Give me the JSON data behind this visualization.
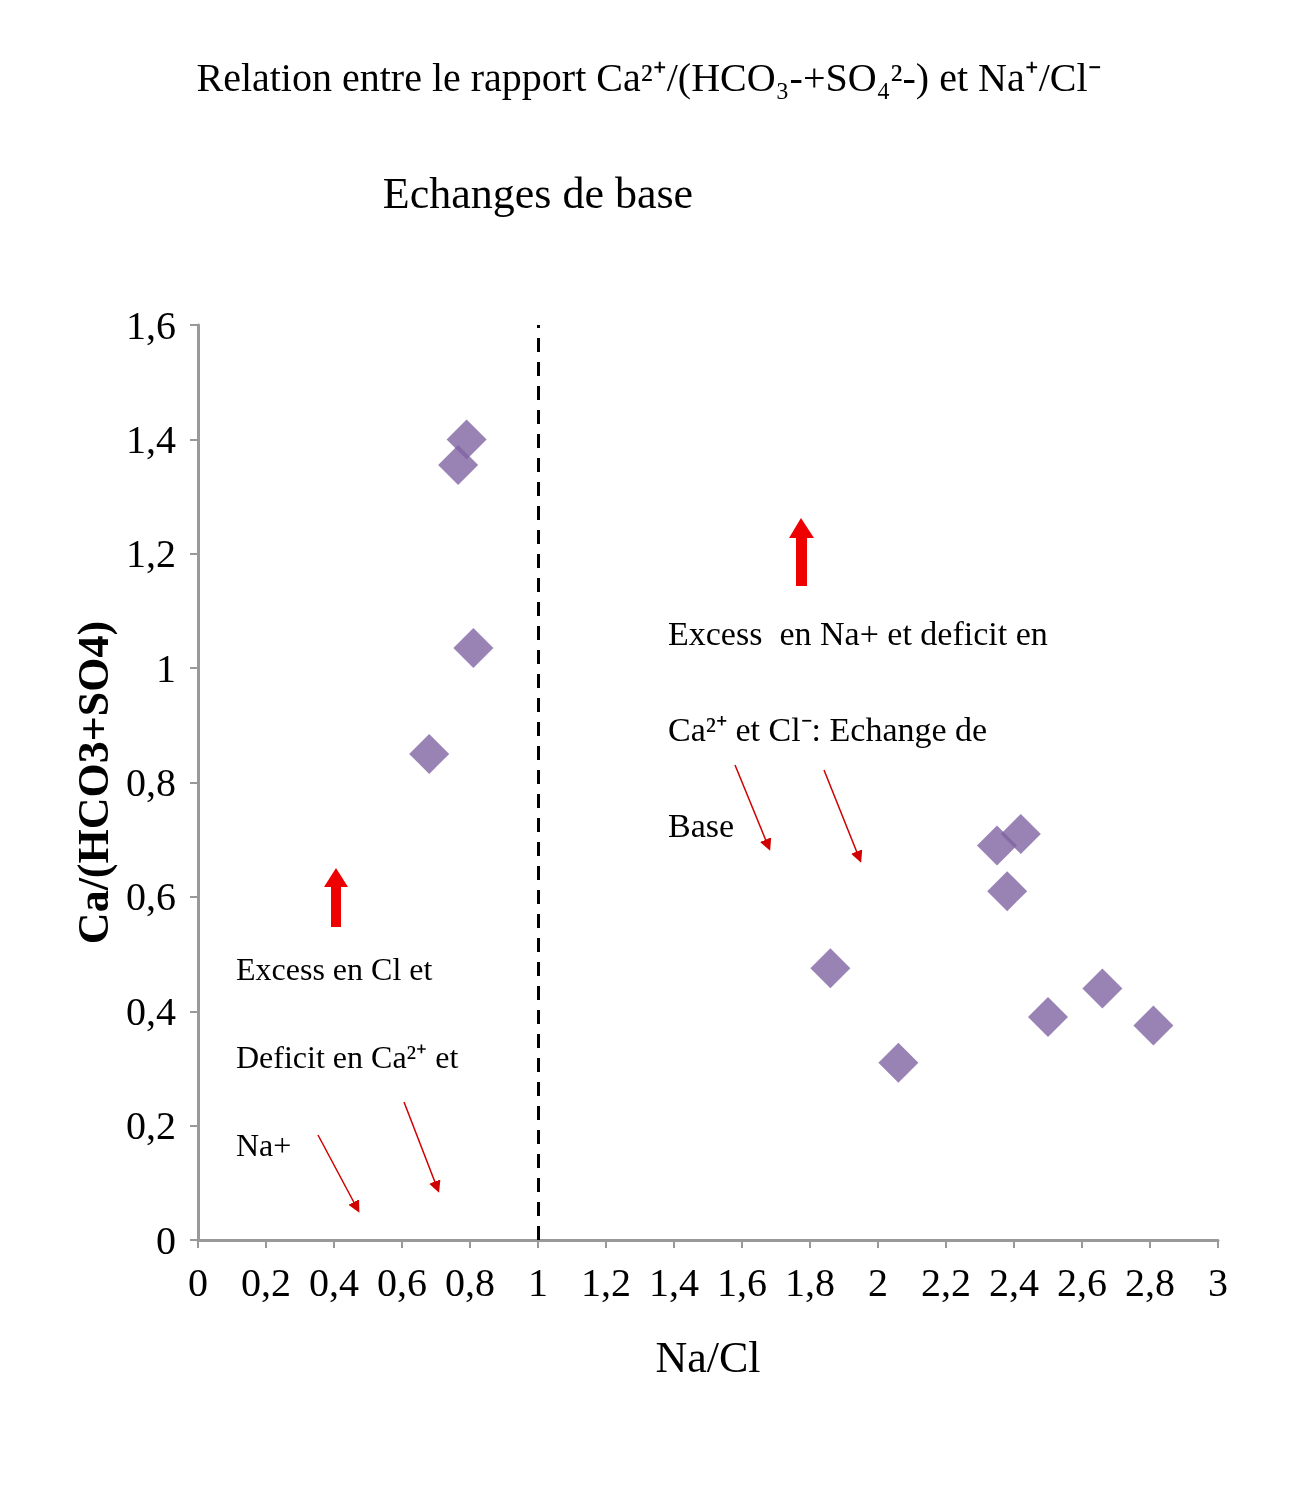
{
  "chart_data": {
    "type": "scatter",
    "title": "Relation entre le rapport Ca²⁺/(HCO₃-+SO₄²-) et Na⁺/Cl⁻",
    "xlabel": "Na/Cl",
    "ylabel": "Ca/(HCO3+SO4)",
    "x": [
      0.765,
      0.79,
      0.81,
      0.68,
      1.86,
      2.06,
      2.35,
      2.42,
      2.38,
      2.5,
      2.66,
      2.81
    ],
    "series": [
      {
        "color": "#8064a2",
        "values": [
          1.355,
          1.4,
          1.035,
          0.85,
          0.475,
          0.31,
          0.69,
          0.71,
          0.61,
          0.39,
          0.44,
          0.375
        ]
      }
    ],
    "marker": "diamond",
    "grid": false,
    "xlim": [
      0,
      3
    ],
    "xticks": [
      0,
      {
        "value": 0.2,
        "label": "0,2"
      },
      {
        "value": 0.4,
        "label": "0,4"
      },
      {
        "value": 0.6,
        "label": "0,6"
      },
      {
        "value": 0.8,
        "label": "0,8"
      },
      1,
      {
        "value": 1.2,
        "label": "1,2"
      },
      {
        "value": 1.4,
        "label": "1,4"
      },
      {
        "value": 1.6,
        "label": "1,6"
      },
      {
        "value": 1.8,
        "label": "1,8"
      },
      2,
      {
        "value": 2.2,
        "label": "2,2"
      },
      {
        "value": 2.4,
        "label": "2,4"
      },
      {
        "value": 2.6,
        "label": "2,6"
      },
      {
        "value": 2.8,
        "label": "2,8"
      },
      3
    ],
    "ylim": [
      0,
      1.6
    ],
    "yticks": [
      0,
      {
        "value": 0.2,
        "label": "0,2"
      },
      {
        "value": 0.4,
        "label": "0,4"
      },
      {
        "value": 0.6,
        "label": "0,6"
      },
      {
        "value": 0.8,
        "label": "0,8"
      },
      1,
      {
        "value": 1.2,
        "label": "1,2"
      },
      {
        "value": 1.4,
        "label": "1,4"
      },
      {
        "value": 1.6,
        "label": "1,6"
      }
    ],
    "ref_lines": [
      {
        "axis": "x",
        "value": 1,
        "label": "Echanges de base",
        "color": "#000000",
        "line_style": "dashed"
      }
    ],
    "annotations": [
      "Excess en Cl et Deficit en Ca²⁺ et Na+",
      "Excess  en Na+ et deficit en Ca²⁺ et Cl⁻: Echange de Base"
    ]
  }
}
